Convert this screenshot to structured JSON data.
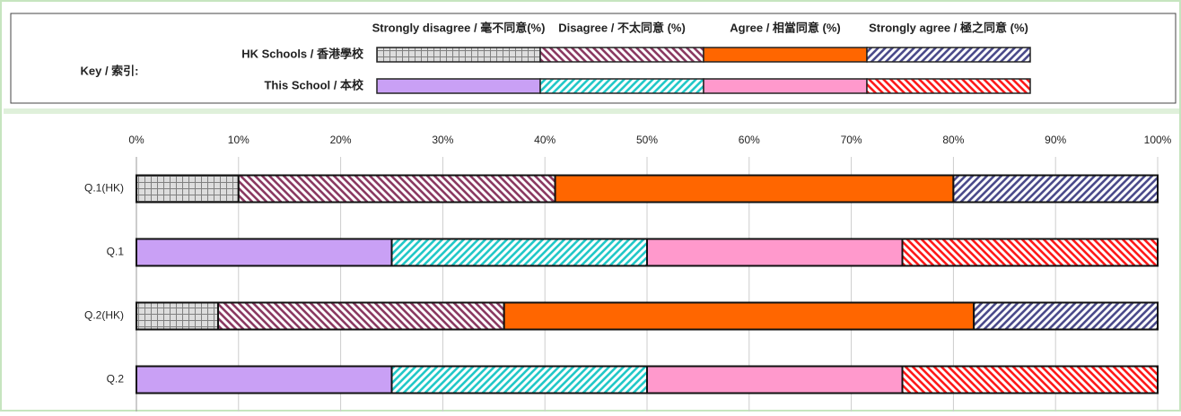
{
  "chart_data": {
    "type": "stacked_barh",
    "key": {
      "title": "Key / 索引:",
      "rows": [
        {
          "label": "HK Schools / 香港學校",
          "colors": [
            "#808080",
            "#8b3a62",
            "#ff6600",
            "#4b4b8b"
          ],
          "patterns": [
            "grid",
            "back",
            "solid",
            "fwd"
          ]
        },
        {
          "label": "This School / 本校",
          "colors": [
            "#c9a0f5",
            "#22c8c8",
            "#ff99cc",
            "#ff1a1a"
          ],
          "patterns": [
            "solid",
            "fwd",
            "solid",
            "back"
          ]
        }
      ]
    },
    "categories": [
      "Q.1(HK)",
      "Q.1",
      "Q.2(HK)",
      "Q.2"
    ],
    "series": [
      {
        "name": "Strongly disagree / 毫不同意(%)",
        "values": [
          10,
          25,
          8,
          25
        ],
        "colors": [
          "#808080",
          "#c9a0f5",
          "#808080",
          "#c9a0f5"
        ],
        "patterns": [
          "grid",
          "solid",
          "grid",
          "solid"
        ]
      },
      {
        "name": "Disagree / 不太同意 (%)",
        "values": [
          31,
          25,
          28,
          25
        ],
        "colors": [
          "#8b3a62",
          "#22c8c8",
          "#8b3a62",
          "#22c8c8"
        ],
        "patterns": [
          "back",
          "fwd",
          "back",
          "fwd"
        ]
      },
      {
        "name": "Agree / 相當同意 (%)",
        "values": [
          39,
          25,
          46,
          25
        ],
        "colors": [
          "#ff6600",
          "#ff99cc",
          "#ff6600",
          "#ff99cc"
        ],
        "patterns": [
          "solid",
          "solid",
          "solid",
          "solid"
        ]
      },
      {
        "name": "Strongly agree / 極之同意 (%)",
        "values": [
          20,
          25,
          18,
          25
        ],
        "colors": [
          "#4b4b8b",
          "#ff1a1a",
          "#4b4b8b",
          "#ff1a1a"
        ],
        "patterns": [
          "fwd",
          "back",
          "fwd",
          "back"
        ]
      }
    ],
    "xlim": [
      0,
      100
    ],
    "xticks": [
      {
        "value": 0,
        "label": "0%"
      },
      {
        "value": 10,
        "label": "10%"
      },
      {
        "value": 20,
        "label": "20%"
      },
      {
        "value": 30,
        "label": "30%"
      },
      {
        "value": 40,
        "label": "40%"
      },
      {
        "value": 50,
        "label": "50%"
      },
      {
        "value": 60,
        "label": "60%"
      },
      {
        "value": 70,
        "label": "70%"
      },
      {
        "value": 80,
        "label": "80%"
      },
      {
        "value": 90,
        "label": "90%"
      },
      {
        "value": 100,
        "label": "100%"
      }
    ],
    "grid": true
  }
}
